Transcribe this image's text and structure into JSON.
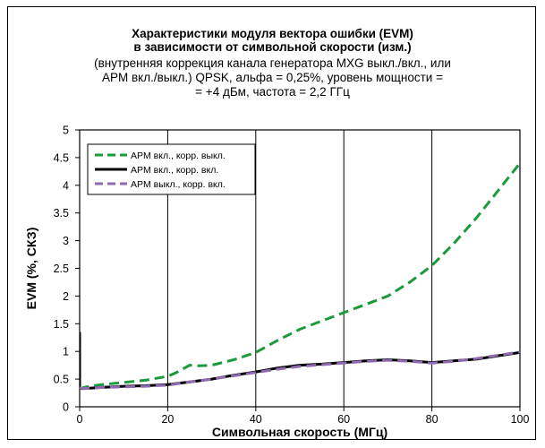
{
  "chart_data": {
    "type": "line",
    "title_lines": [
      "Характеристики модуля вектора ошибки (EVM)",
      "в зависимости от символьной скорости (изм.)"
    ],
    "subtitle_lines": [
      "(внутренняя коррекция канала генератора MXG выкл./вкл., или",
      "APM вкл./выкл.) QPSK, альфа = 0,25%, уровень мощности =",
      "= +4 дБм, частота = 2,2 ГГц"
    ],
    "xlabel": "Символьная скорость (МГц)",
    "ylabel": "EVM (%, СКЗ)",
    "xlim": [
      0,
      100
    ],
    "ylim": [
      0,
      5
    ],
    "x_ticks": [
      {
        "v": 0,
        "label": "0"
      },
      {
        "v": 20,
        "label": "20"
      },
      {
        "v": 40,
        "label": "40"
      },
      {
        "v": 60,
        "label": "60"
      },
      {
        "v": 80,
        "label": "80"
      },
      {
        "v": 100,
        "label": "100"
      }
    ],
    "y_ticks": [
      {
        "v": 0,
        "label": "0"
      },
      {
        "v": 0.5,
        "label": "0.5"
      },
      {
        "v": 1,
        "label": "1"
      },
      {
        "v": 1.5,
        "label": "1.5"
      },
      {
        "v": 2,
        "label": "2"
      },
      {
        "v": 2.5,
        "label": "2.5"
      },
      {
        "v": 3,
        "label": "3"
      },
      {
        "v": 3.5,
        "label": "3.5"
      },
      {
        "v": 4,
        "label": "4"
      },
      {
        "v": 4.5,
        "label": "4.5"
      },
      {
        "v": 5,
        "label": "5"
      }
    ],
    "grid": "vertical",
    "legend_position": "top-left",
    "series": [
      {
        "name": "APM вкл., корр. выкл.",
        "color": "#1a9a3a",
        "style": "dashed",
        "x": [
          0,
          0.3,
          1,
          3,
          5,
          10,
          15,
          20,
          22,
          25,
          27,
          30,
          35,
          40,
          45,
          50,
          55,
          60,
          65,
          70,
          75,
          80,
          85,
          90,
          95,
          100
        ],
        "y": [
          0.35,
          0.33,
          0.35,
          0.38,
          0.4,
          0.44,
          0.48,
          0.55,
          0.62,
          0.75,
          0.74,
          0.75,
          0.85,
          0.98,
          1.2,
          1.4,
          1.55,
          1.7,
          1.85,
          2.0,
          2.25,
          2.55,
          2.95,
          3.4,
          3.9,
          4.4
        ]
      },
      {
        "name": "APM вкл., корр. вкл.",
        "color": "#000000",
        "style": "solid",
        "x": [
          0,
          0,
          0.3,
          1,
          3,
          5,
          10,
          15,
          20,
          25,
          30,
          35,
          40,
          45,
          50,
          55,
          60,
          65,
          70,
          75,
          80,
          85,
          90,
          95,
          100
        ],
        "y": [
          1.35,
          0.35,
          0.33,
          0.33,
          0.34,
          0.35,
          0.37,
          0.38,
          0.4,
          0.45,
          0.5,
          0.57,
          0.63,
          0.7,
          0.75,
          0.77,
          0.8,
          0.83,
          0.85,
          0.83,
          0.8,
          0.83,
          0.86,
          0.92,
          0.98
        ]
      },
      {
        "name": "APM выкл., корр. вкл.",
        "color": "#8e6bb0",
        "style": "dashed",
        "x": [
          0,
          1,
          3,
          5,
          10,
          15,
          20,
          25,
          30,
          35,
          40,
          45,
          50,
          55,
          60,
          65,
          70,
          75,
          80,
          85,
          90,
          95,
          100
        ],
        "y": [
          0.34,
          0.33,
          0.34,
          0.35,
          0.36,
          0.37,
          0.39,
          0.45,
          0.5,
          0.56,
          0.62,
          0.68,
          0.73,
          0.76,
          0.79,
          0.82,
          0.84,
          0.82,
          0.79,
          0.82,
          0.87,
          0.93,
          0.99
        ]
      }
    ]
  }
}
